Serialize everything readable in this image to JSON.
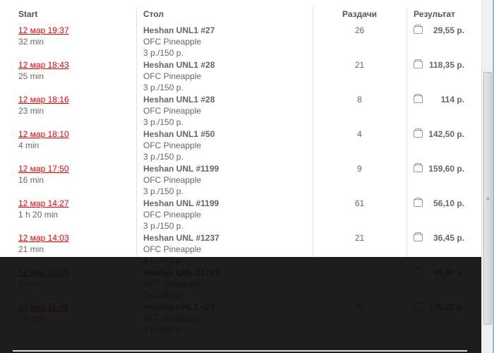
{
  "headers": {
    "start": "Start",
    "table": "Стол",
    "hands": "Раздачи",
    "result": "Результат"
  },
  "rows": [
    {
      "date": "12 мар 19:37",
      "duration": "32 min",
      "table": "Heshan UNL1 #27",
      "game": "OFC Pineapple",
      "stakes": "3 р./150 р.",
      "hands": "26",
      "result": "29,55 р."
    },
    {
      "date": "12 мар 18:43",
      "duration": "25 min",
      "table": "Heshan UNL1 #28",
      "game": "OFC Pineapple",
      "stakes": "3 р./150 р.",
      "hands": "21",
      "result": "118,35 р."
    },
    {
      "date": "12 мар 18:16",
      "duration": "23 min",
      "table": "Heshan UNL1 #28",
      "game": "OFC Pineapple",
      "stakes": "3 р./150 р.",
      "hands": "8",
      "result": "114 р."
    },
    {
      "date": "12 мар 18:10",
      "duration": "4 min",
      "table": "Heshan UNL1 #50",
      "game": "OFC Pineapple",
      "stakes": "3 р./150 р.",
      "hands": "4",
      "result": "142,50 р."
    },
    {
      "date": "12 мар 17:50",
      "duration": "16 min",
      "table": "Heshan UNL #1199",
      "game": "OFC Pineapple",
      "stakes": "3 р./150 р.",
      "hands": "9",
      "result": "159,60 р."
    },
    {
      "date": "12 мар 14:27",
      "duration": "1 h 20 min",
      "table": "Heshan UNL #1199",
      "game": "OFC Pineapple",
      "stakes": "3 р./150 р.",
      "hands": "61",
      "result": "56,10 р."
    },
    {
      "date": "12 мар 14:03",
      "duration": "21 min",
      "table": "Heshan UNL #1237",
      "game": "OFC Pineapple",
      "stakes": "3 р./150 р.",
      "hands": "21",
      "result": "36,45 р."
    },
    {
      "date": "12 мар 12:09",
      "duration": "4 min",
      "table": "Heshan UNL #1199",
      "game": "OFC Pineapple",
      "stakes": "3 р./150 р.",
      "hands": "2",
      "result": "48,45 р."
    },
    {
      "date": "12 мар 11:44",
      "duration": "23 min",
      "table": "Heshan UNL1 #28",
      "game": "OFC Pineapple",
      "stakes": "3 р./150 р.",
      "hands": "21",
      "result": "170,25 р."
    }
  ],
  "icons": {
    "result": "wallet-icon"
  },
  "colors": {
    "link": "#ee0000",
    "overlay": "#0c0c0c"
  }
}
